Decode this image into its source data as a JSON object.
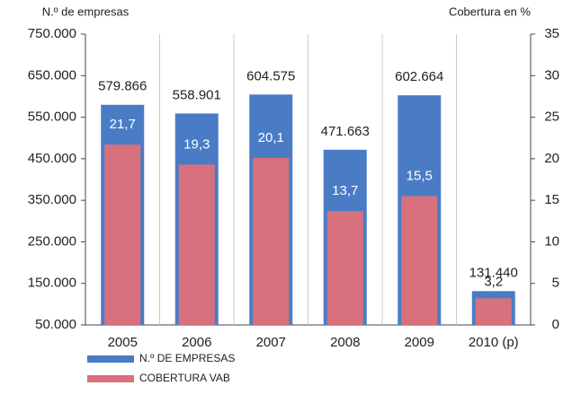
{
  "chart_data": {
    "type": "bar",
    "y_label": "N.º de empresas",
    "y2_label": "Cobertura en %",
    "categories": [
      "2005",
      "2006",
      "2007",
      "2008",
      "2009",
      "2010 (p)"
    ],
    "series": [
      {
        "name": "N.º DE EMPRESAS",
        "color": "#4a7cc6",
        "values": [
          579866,
          558901,
          604575,
          471663,
          602664,
          131440
        ],
        "value_labels": [
          "579.866",
          "558.901",
          "604.575",
          "471.663",
          "602.664",
          "131.440"
        ]
      },
      {
        "name": "COBERTURA VAB",
        "color": "#d9707d",
        "axis": "y2",
        "values": [
          21.7,
          19.3,
          20.1,
          13.7,
          15.5,
          3.2
        ],
        "value_labels": [
          "21,7",
          "19,3",
          "20,1",
          "13,7",
          "15,5",
          "3,2"
        ]
      }
    ],
    "ylim": [
      50000,
      750000
    ],
    "yticks": [
      {
        "value": 50000,
        "label": "50.000"
      },
      {
        "value": 150000,
        "label": "150.000"
      },
      {
        "value": 250000,
        "label": "250.000"
      },
      {
        "value": 350000,
        "label": "350.000"
      },
      {
        "value": 450000,
        "label": "450.000"
      },
      {
        "value": 550000,
        "label": "550.000"
      },
      {
        "value": 650000,
        "label": "650.000"
      },
      {
        "value": 750000,
        "label": "750.000"
      }
    ],
    "y2lim": [
      0,
      35
    ],
    "y2ticks": [
      0,
      5,
      10,
      15,
      20,
      25,
      30,
      35
    ]
  }
}
